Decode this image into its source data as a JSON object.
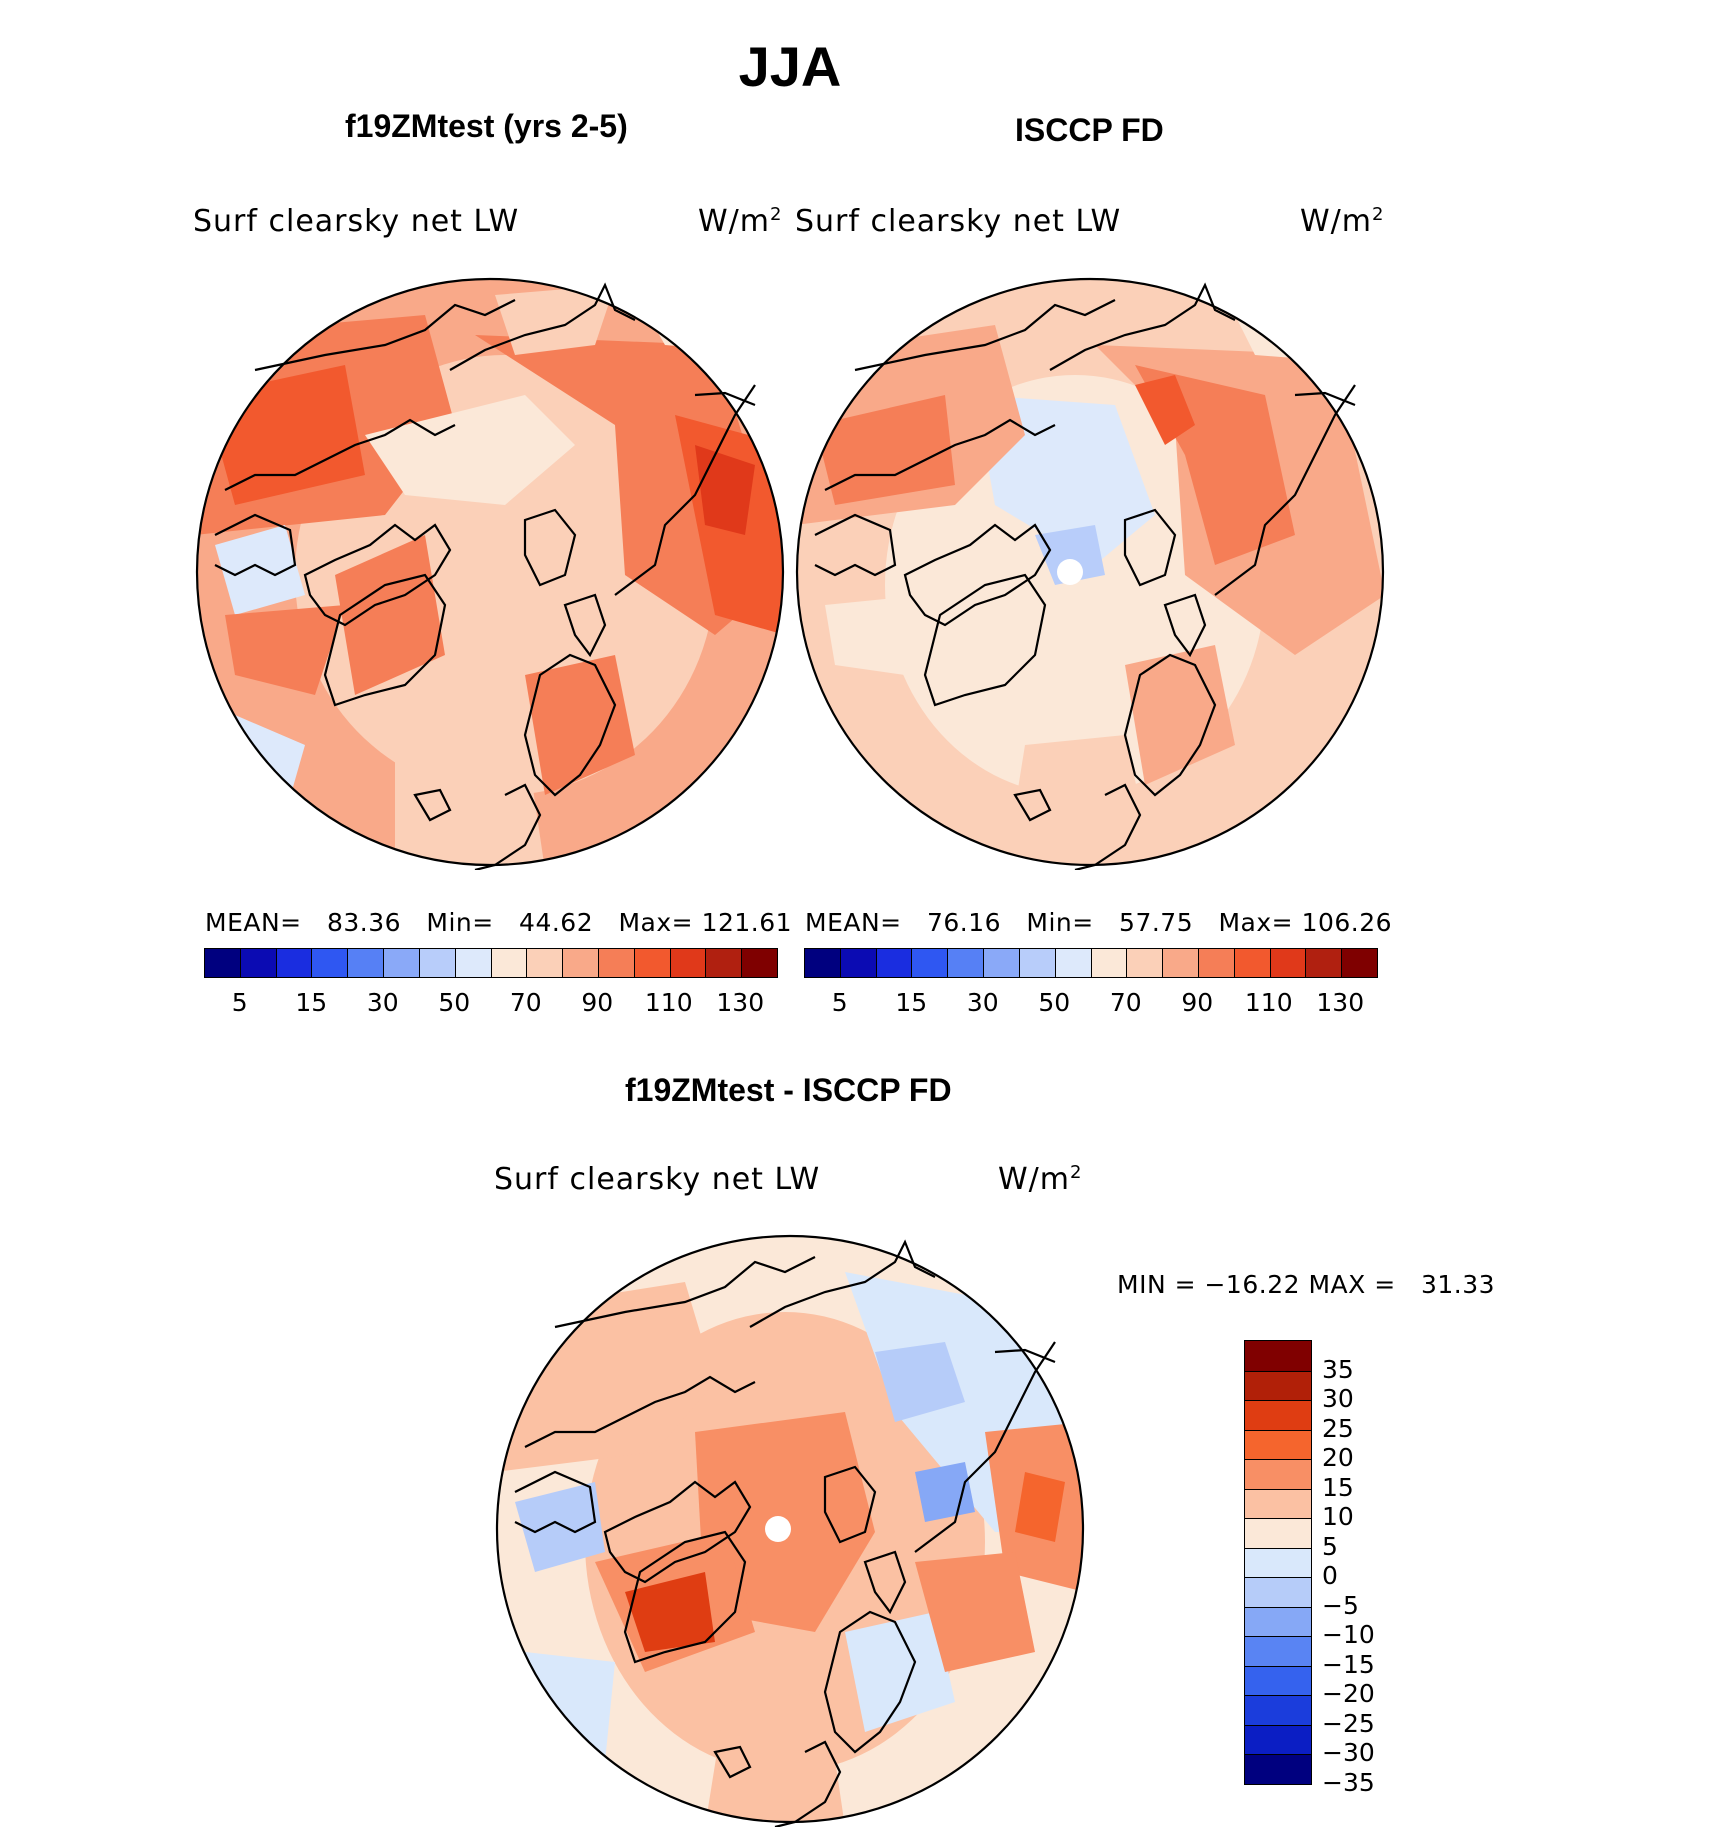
{
  "title": "JJA",
  "panels": {
    "model": {
      "subtitle": "f19ZMtest (yrs 2-5)",
      "variable": "Surf clearsky net LW",
      "units": "W/m",
      "units_sup": "2",
      "stats": {
        "mean_label": "MEAN=",
        "mean": "83.36",
        "min_label": "Min=",
        "min": "44.62",
        "max_label": "Max=",
        "max": "121.61"
      }
    },
    "obs": {
      "subtitle": "ISCCP FD",
      "variable": "Surf clearsky net LW",
      "units": "W/m",
      "units_sup": "2",
      "stats": {
        "mean_label": "MEAN=",
        "mean": "76.16",
        "min_label": "Min=",
        "min": "57.75",
        "max_label": "Max=",
        "max": "106.26"
      }
    },
    "diff": {
      "subtitle": "f19ZMtest - ISCCP FD",
      "variable": "Surf clearsky net LW",
      "units": "W/m",
      "units_sup": "2",
      "minmax_text": "MIN = −16.22 MAX =   31.33"
    }
  },
  "colorbar_abs": {
    "colors": [
      "#00007f",
      "#0b0bb3",
      "#1a2de0",
      "#2f57f2",
      "#5680f5",
      "#8aa9f8",
      "#b8cdfa",
      "#dde9fb",
      "#fbe8d8",
      "#fbd0b8",
      "#f9a989",
      "#f57e57",
      "#f2592e",
      "#e0391a",
      "#b02010",
      "#7f0000"
    ],
    "ticks": [
      "5",
      "15",
      "30",
      "50",
      "70",
      "90",
      "110",
      "130"
    ]
  },
  "colorbar_diff": {
    "colors": [
      "#00007f",
      "#0b1ec4",
      "#1b3ddc",
      "#3562ee",
      "#5984f3",
      "#86a8f6",
      "#b6ccf9",
      "#d9e8fb",
      "#fbe8d8",
      "#fbc1a3",
      "#f88f65",
      "#f5652d",
      "#df3d12",
      "#b12008",
      "#800000"
    ],
    "ticks": [
      "35",
      "30",
      "25",
      "20",
      "15",
      "10",
      "5",
      "0",
      "−5",
      "−10",
      "−15",
      "−20",
      "−25",
      "−30",
      "−35"
    ]
  }
}
